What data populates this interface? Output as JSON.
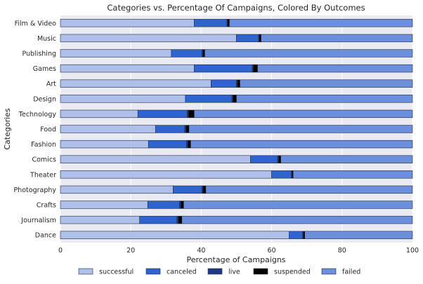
{
  "chart_data": {
    "type": "bar",
    "orientation": "horizontal",
    "stacked": true,
    "title": "Categories vs. Percentage Of Campaigns, Colored By Outcomes",
    "xlabel": "Percentage of Campaigns",
    "ylabel": "Categories",
    "xlim": [
      0,
      100
    ],
    "xticks": [
      "0",
      "20",
      "40",
      "60",
      "80",
      "100"
    ],
    "grid": true,
    "legend_placement": "bottom",
    "categories": [
      "Film & Video",
      "Music",
      "Publishing",
      "Games",
      "Art",
      "Design",
      "Technology",
      "Food",
      "Fashion",
      "Comics",
      "Theater",
      "Photography",
      "Crafts",
      "Journalism",
      "Dance"
    ],
    "series": [
      {
        "name": "successful",
        "color": "#aec0ea",
        "values": [
          38,
          50,
          31.5,
          38,
          42.8,
          35.5,
          22,
          27,
          25,
          54,
          60,
          32,
          24.8,
          22.5,
          65
        ]
      },
      {
        "name": "canceled",
        "color": "#2f63cf",
        "values": [
          9.3,
          6.3,
          8.7,
          16.5,
          7.2,
          13.2,
          14,
          8.3,
          10.8,
          7.7,
          5.6,
          8.2,
          9,
          10.6,
          3.8
        ]
      },
      {
        "name": "live",
        "color": "#1e3a85",
        "values": [
          0.2,
          0.2,
          0.3,
          0.3,
          0.3,
          0.3,
          0.4,
          0.4,
          0.4,
          0.3,
          0.2,
          0.3,
          0.4,
          0.4,
          0.2
        ]
      },
      {
        "name": "suspended",
        "color": "#000000",
        "values": [
          0.5,
          0.5,
          0.5,
          1.2,
          0.7,
          1.0,
          1.6,
          0.8,
          0.8,
          0.6,
          0.3,
          0.8,
          0.8,
          1.0,
          0.4
        ]
      },
      {
        "name": "failed",
        "color": "#6b8fdc",
        "values": [
          52.0,
          43.0,
          59.0,
          44.0,
          49.0,
          50.0,
          62.0,
          63.5,
          63.0,
          37.4,
          33.9,
          58.7,
          65.0,
          65.5,
          30.6
        ]
      }
    ]
  }
}
